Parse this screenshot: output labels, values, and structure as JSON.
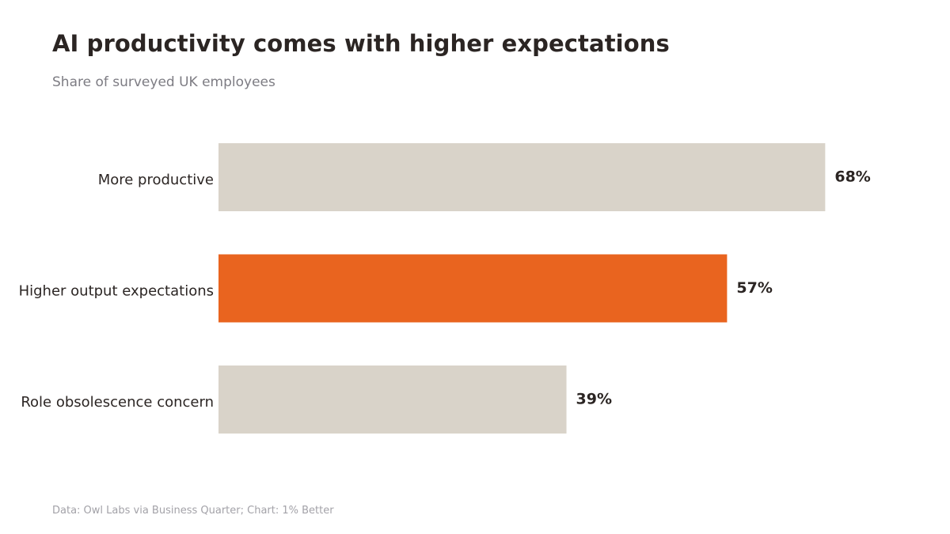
{
  "title": "AI productivity comes with higher expectations",
  "subtitle": "Share of surveyed UK employees",
  "source": "Data: Owl Labs via Business Quarter; Chart: 1% Better",
  "chart_data": {
    "type": "bar",
    "orientation": "horizontal",
    "categories": [
      "More productive",
      "Higher output expectations",
      "Role obsolescence concern"
    ],
    "values": [
      68,
      57,
      39
    ],
    "value_labels": [
      "68%",
      "57%",
      "39%"
    ],
    "highlight_index": 1,
    "colors": {
      "default": "#d9d3c9",
      "highlight": "#e9641f",
      "text": "#2b2523"
    },
    "xlim": [
      0,
      100
    ],
    "grid": false,
    "title": "AI productivity comes with higher expectations",
    "subtitle": "Share of surveyed UK employees",
    "xlabel": "",
    "ylabel": ""
  }
}
